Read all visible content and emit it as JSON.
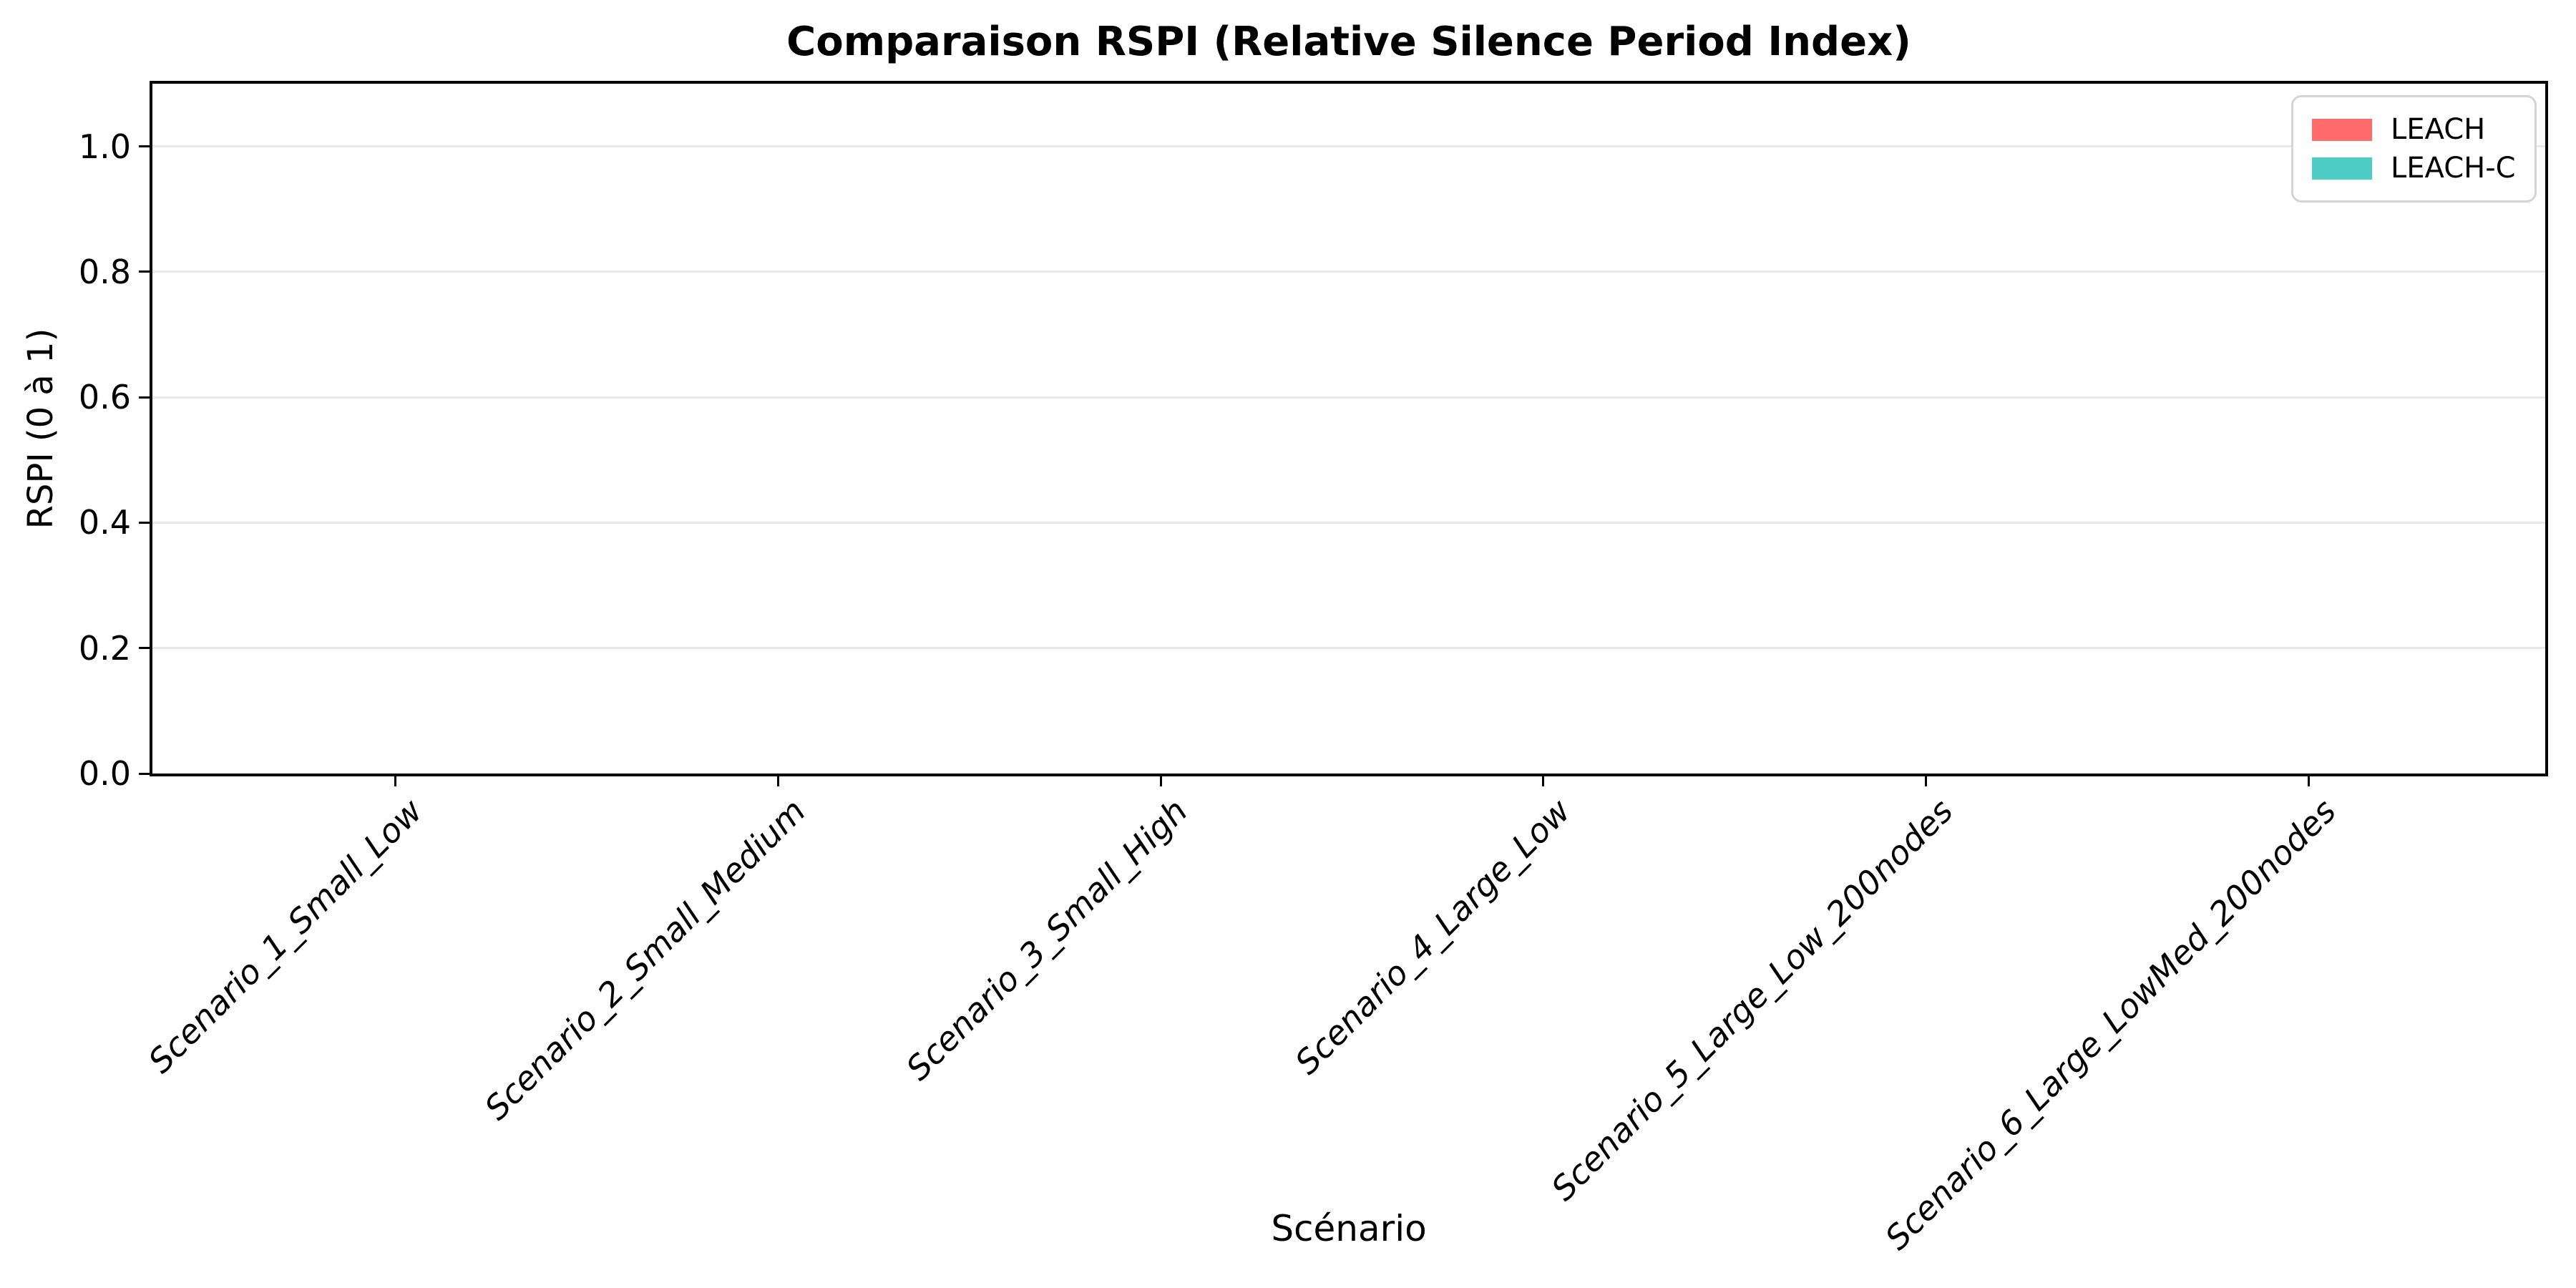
{
  "chart_data": {
    "type": "bar",
    "title": "Comparaison RSPI (Relative Silence Period Index)",
    "xlabel": "Scénario",
    "ylabel": "RSPI (0 à 1)",
    "categories": [
      "Scenario_1_Small_Low",
      "Scenario_2_Small_Medium",
      "Scenario_3_Small_High",
      "Scenario_4_Large_Low",
      "Scenario_5_Large_Low_200nodes",
      "Scenario_6_Large_LowMed_200nodes"
    ],
    "series": [
      {
        "name": "LEACH",
        "color": "#FF6B6B",
        "values": [
          0.0,
          0.0,
          0.0,
          0.0,
          0.0,
          0.0
        ]
      },
      {
        "name": "LEACH-C",
        "color": "#4ECDC4",
        "values": [
          0.0,
          0.0,
          0.0,
          0.0,
          0.0,
          0.0
        ]
      }
    ],
    "ylim": [
      0,
      1.1
    ],
    "yticks": [
      0.0,
      0.2,
      0.4,
      0.6,
      0.8,
      1.0
    ],
    "ytick_labels": [
      "0.0",
      "0.2",
      "0.4",
      "0.6",
      "0.8",
      "1.0"
    ],
    "grid": "horizontal",
    "gridline_color": "#e9e9e9",
    "axis_color": "#000000",
    "background_color": "#ffffff",
    "legend": {
      "position": "upper-right",
      "entries": [
        "LEACH",
        "LEACH-C"
      ]
    }
  }
}
